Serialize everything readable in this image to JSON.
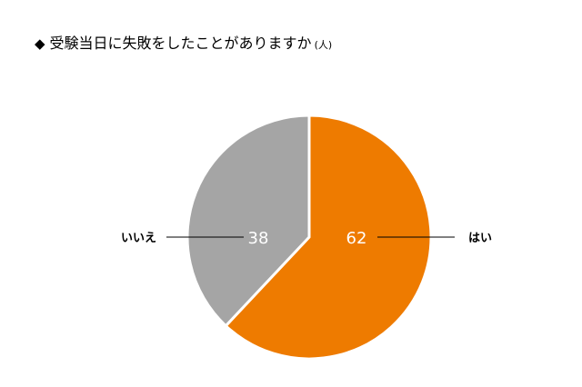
{
  "title": {
    "bullet": "◆",
    "text": "受験当日に失敗をしたことがありますか",
    "unit": "(人)"
  },
  "chart_data": {
    "type": "pie",
    "title": "受験当日に失敗をしたことがありますか",
    "unit": "(人)",
    "start": "12 o'clock, clockwise",
    "slices": [
      {
        "label": "はい",
        "value": 62,
        "color": "#ee7b00"
      },
      {
        "label": "いいえ",
        "value": 38,
        "color": "#a5a5a5"
      }
    ]
  }
}
